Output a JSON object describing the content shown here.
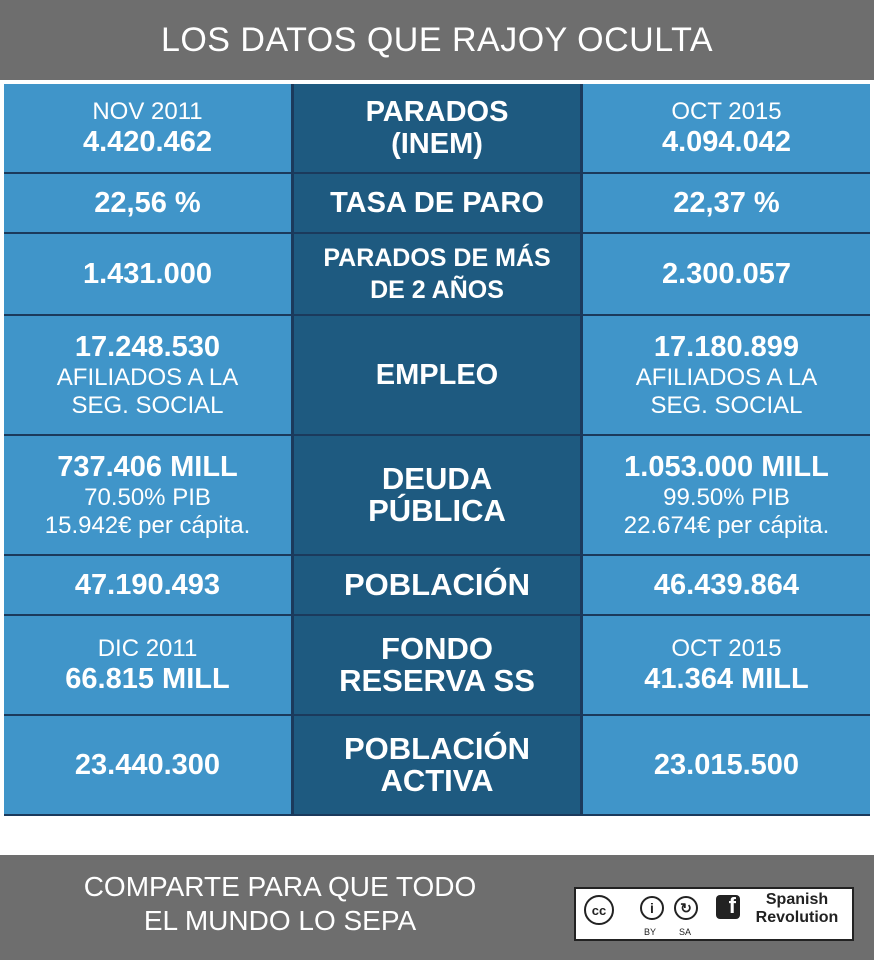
{
  "header": {
    "title": "LOS DATOS QUE RAJOY OCULTA"
  },
  "rows": [
    {
      "left": [
        "NOV 2011",
        "4.420.462"
      ],
      "label": [
        "PARADOS",
        "(INEM)"
      ],
      "right": [
        "OCT 2015",
        "4.094.042"
      ]
    },
    {
      "left": [
        "22,56 %"
      ],
      "label": [
        "TASA DE PARO"
      ],
      "right": [
        "22,37 %"
      ]
    },
    {
      "left": [
        "1.431.000"
      ],
      "label": [
        "PARADOS DE MÁS",
        "DE 2 AÑOS"
      ],
      "right": [
        "2.300.057"
      ]
    },
    {
      "left": [
        "17.248.530",
        "AFILIADOS A LA",
        "SEG. SOCIAL"
      ],
      "label": [
        "EMPLEO"
      ],
      "right": [
        "17.180.899",
        "AFILIADOS A LA",
        "SEG. SOCIAL"
      ]
    },
    {
      "left": [
        "737.406 MILL",
        "70.50% PIB",
        "15.942€ per cápita."
      ],
      "label": [
        "DEUDA",
        "PÚBLICA"
      ],
      "right": [
        "1.053.000 MILL",
        "99.50% PIB",
        "22.674€ per cápita."
      ]
    },
    {
      "left": [
        "47.190.493"
      ],
      "label": [
        "POBLACIÓN"
      ],
      "right": [
        "46.439.864"
      ]
    },
    {
      "left": [
        "DIC 2011",
        "66.815 MILL"
      ],
      "label": [
        "FONDO",
        "RESERVA SS"
      ],
      "right": [
        "OCT 2015",
        "41.364 MILL"
      ]
    },
    {
      "left": [
        "23.440.300"
      ],
      "label": [
        "POBLACIÓN",
        "ACTIVA"
      ],
      "right": [
        "23.015.500"
      ]
    }
  ],
  "footer": {
    "line1": "COMPARTE PARA QUE TODO",
    "line2": "EL MUNDO LO SEPA",
    "license": {
      "cc": "cc",
      "by": "BY",
      "sa": "SA"
    },
    "brand_line1": "Spanish",
    "brand_line2": "Revolution",
    "brand_icon": "f"
  },
  "colors": {
    "header_bg": "#6e6e6e",
    "side_cell": "#4095c9",
    "mid_cell": "#1e5a80",
    "grid_line": "#1b3a5c"
  }
}
